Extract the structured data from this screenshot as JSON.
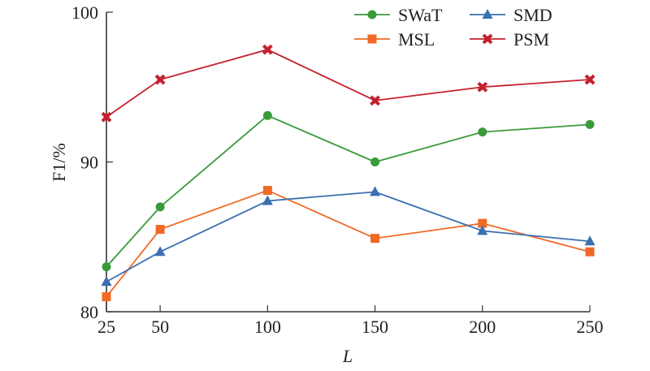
{
  "chart_data": {
    "type": "line",
    "title": "",
    "xlabel": "L",
    "ylabel": "F1/%",
    "x": [
      25,
      50,
      100,
      150,
      200,
      250
    ],
    "x_tick_labels": [
      "25",
      "50",
      "100",
      "150",
      "200",
      "250"
    ],
    "xlim": [
      25,
      250
    ],
    "ylim": [
      80,
      100
    ],
    "y_ticks": [
      80,
      90,
      100
    ],
    "y_tick_labels": [
      "80",
      "90",
      "100"
    ],
    "grid": false,
    "legend_position": "top-right",
    "legend_columns": 2,
    "series": [
      {
        "name": "SWaT",
        "marker": "circle",
        "color": "#3a9a3a",
        "values": [
          83.0,
          87.0,
          93.1,
          90.0,
          92.0,
          92.5
        ]
      },
      {
        "name": "MSL",
        "marker": "square",
        "color": "#f06a26",
        "values": [
          81.0,
          85.5,
          88.1,
          84.9,
          85.9,
          84.0
        ]
      },
      {
        "name": "SMD",
        "marker": "triangle",
        "color": "#3a6fb0",
        "values": [
          82.0,
          84.0,
          87.4,
          88.0,
          85.4,
          84.7
        ]
      },
      {
        "name": "PSM",
        "marker": "cross",
        "color": "#c4202e",
        "values": [
          93.0,
          95.5,
          97.5,
          94.1,
          95.0,
          95.5
        ]
      }
    ]
  }
}
